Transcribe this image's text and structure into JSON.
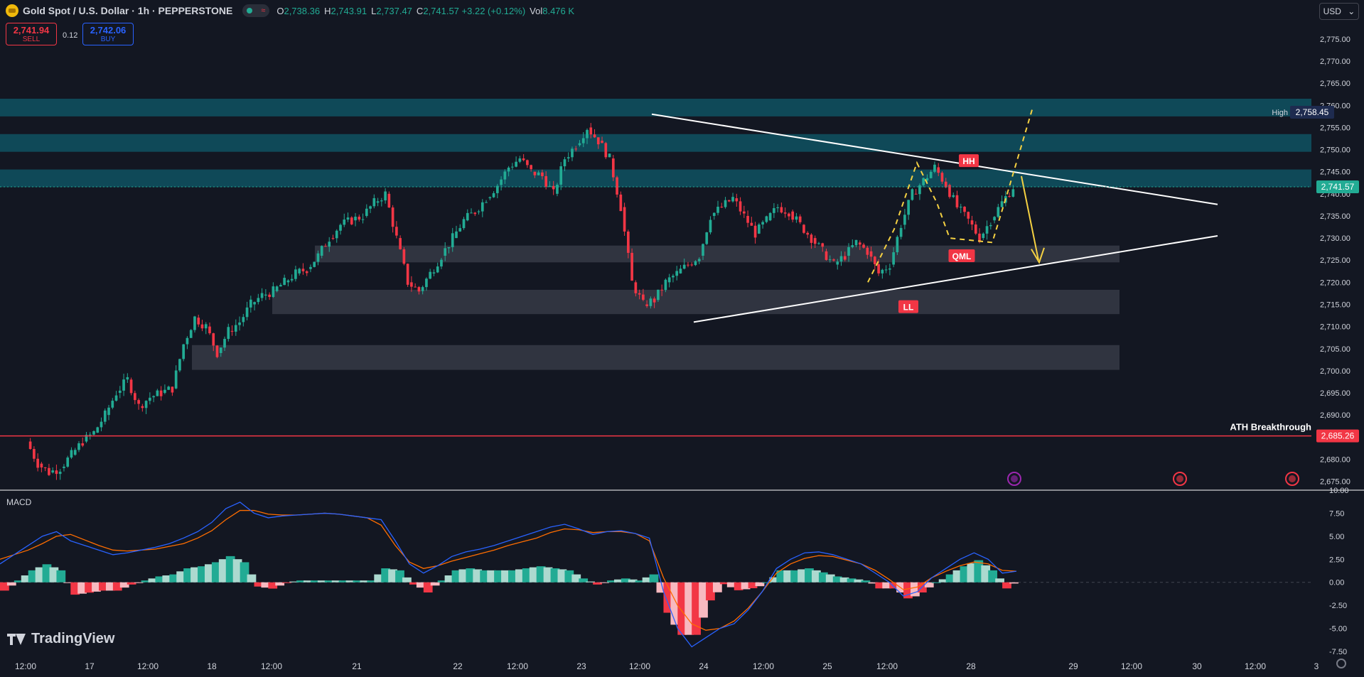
{
  "header": {
    "symbol": "Gold Spot / U.S. Dollar · 1h · PEPPERSTONE",
    "o_label": "O",
    "o": "2,738.36",
    "h_label": "H",
    "h": "2,743.91",
    "l_label": "L",
    "l": "2,737.47",
    "c_label": "C",
    "c": "2,741.57 +3.22 (+0.12%)",
    "vol_label": "Vol",
    "vol": "8.476 K"
  },
  "trade": {
    "sell_price": "2,741.94",
    "sell_label": "SELL",
    "spread": "0.12",
    "buy_price": "2,742.06",
    "buy_label": "BUY"
  },
  "currency": "USD",
  "macd_label": "MACD",
  "logo_text": "TradingView",
  "colors": {
    "background": "#131722",
    "up": "#22ab94",
    "down": "#f23645",
    "zone_teal": "#0f4c5c",
    "zone_gray": "#363a45",
    "trendline": "#ffffff",
    "arrow": "#f5d142",
    "macd_line": "#2962ff",
    "signal_line": "#ff6d00"
  },
  "chart_data": [
    {
      "type": "candlestick",
      "price_axis_ticks": [
        "2,775.00",
        "2,770.00",
        "2,765.00",
        "2,760.00",
        "2,755.00",
        "2,750.00",
        "2,745.00",
        "2,740.00",
        "2,735.00",
        "2,730.00",
        "2,725.00",
        "2,720.00",
        "2,715.00",
        "2,710.00",
        "2,705.00",
        "2,700.00",
        "2,695.00",
        "2,690.00",
        "2,685.00",
        "2,680.00",
        "2,675.00"
      ],
      "ylim": [
        2673,
        2779
      ],
      "time_axis_labels": [
        "12:00",
        "17",
        "12:00",
        "18",
        "12:00",
        "21",
        "22",
        "12:00",
        "23",
        "12:00",
        "24",
        "12:00",
        "25",
        "12:00",
        "28",
        "29",
        "12:00",
        "30",
        "12:00",
        "3"
      ],
      "close_path": [
        2684,
        2679,
        2677,
        2678,
        2681,
        2684,
        2686,
        2690,
        2695,
        2698,
        2692,
        2694,
        2695,
        2696,
        2706,
        2712,
        2710,
        2704,
        2709,
        2711,
        2715,
        2717,
        2718,
        2720,
        2722,
        2723,
        2726,
        2730,
        2733,
        2734,
        2735,
        2738,
        2740,
        2730,
        2720,
        2718,
        2722,
        2726,
        2730,
        2734,
        2736,
        2739,
        2742,
        2746,
        2748,
        2745,
        2744,
        2740,
        2748,
        2751,
        2755,
        2752,
        2748,
        2737,
        2720,
        2715,
        2716,
        2720,
        2722,
        2724,
        2726,
        2735,
        2737,
        2739,
        2735,
        2731,
        2734,
        2737,
        2736,
        2733,
        2730,
        2727,
        2724,
        2726,
        2729,
        2727,
        2722,
        2724,
        2733,
        2740,
        2743,
        2746,
        2742,
        2737,
        2734,
        2730,
        2734,
        2738,
        2741.57
      ],
      "high_label": "High",
      "high_value": "2,758.45",
      "current_value": "2,741.57",
      "ath_label": "ATH Breakthrough",
      "ath_value": "2,685.26",
      "zones": [
        {
          "kind": "resistance",
          "from": 2757.5,
          "to": 2761.5
        },
        {
          "kind": "resistance",
          "from": 2749.5,
          "to": 2753.5
        },
        {
          "kind": "resistance",
          "from": 2741.5,
          "to": 2745.5
        },
        {
          "kind": "demand",
          "from": 2724.5,
          "to": 2728.3
        },
        {
          "kind": "demand",
          "from": 2712.8,
          "to": 2718.3
        },
        {
          "kind": "demand",
          "from": 2700.2,
          "to": 2705.8
        }
      ],
      "annotations": [
        {
          "text": "HH",
          "price": 2747.5
        },
        {
          "text": "QML",
          "price": 2726
        },
        {
          "text": "LL",
          "price": 2714.5
        }
      ]
    },
    {
      "type": "macd",
      "ticks": [
        "10.00",
        "7.50",
        "5.00",
        "2.50",
        "0.00",
        "-2.50",
        "-5.00",
        "-7.50"
      ],
      "ylim": [
        -8.5,
        10.0
      ],
      "macd": [
        2,
        3,
        4,
        5,
        5.5,
        4.5,
        4,
        3.5,
        3,
        3.2,
        3.5,
        3.8,
        4.2,
        4.8,
        5.5,
        6.5,
        8,
        8.7,
        7.5,
        7,
        7.2,
        7.3,
        7.4,
        7.5,
        7.4,
        7.2,
        7,
        6.8,
        4.5,
        2,
        1,
        1.8,
        2.8,
        3.3,
        3.6,
        4,
        4.5,
        5,
        5.5,
        6,
        6.3,
        5.8,
        5.2,
        5.5,
        5.6,
        5.3,
        4.8,
        -1,
        -5,
        -7,
        -6,
        -5,
        -4.5,
        -3,
        -1,
        1.5,
        2.5,
        3.2,
        3.3,
        3.0,
        2.5,
        2.0,
        1.0,
        0,
        -1.5,
        -1.0,
        0.5,
        1.5,
        2.5,
        3.2,
        2.5,
        1.0,
        1.2
      ],
      "signal": [
        2.5,
        3,
        3.5,
        4.2,
        5,
        5.2,
        4.6,
        4,
        3.5,
        3.4,
        3.5,
        3.6,
        3.9,
        4.2,
        4.8,
        5.6,
        6.8,
        7.8,
        7.8,
        7.4,
        7.3,
        7.3,
        7.4,
        7.5,
        7.4,
        7.2,
        7.0,
        6.2,
        4,
        2.2,
        1.5,
        1.8,
        2.3,
        2.7,
        3.1,
        3.5,
        4,
        4.4,
        4.8,
        5.4,
        5.8,
        5.7,
        5.4,
        5.5,
        5.5,
        5.3,
        4.5,
        0.5,
        -2.5,
        -4.5,
        -5.2,
        -5,
        -4.2,
        -2.8,
        -1,
        1,
        2,
        2.6,
        2.9,
        2.8,
        2.4,
        2.0,
        1.3,
        0.3,
        -0.8,
        -0.5,
        0.5,
        1.2,
        1.8,
        2.2,
        2.0,
        1.3,
        1.2
      ]
    }
  ]
}
